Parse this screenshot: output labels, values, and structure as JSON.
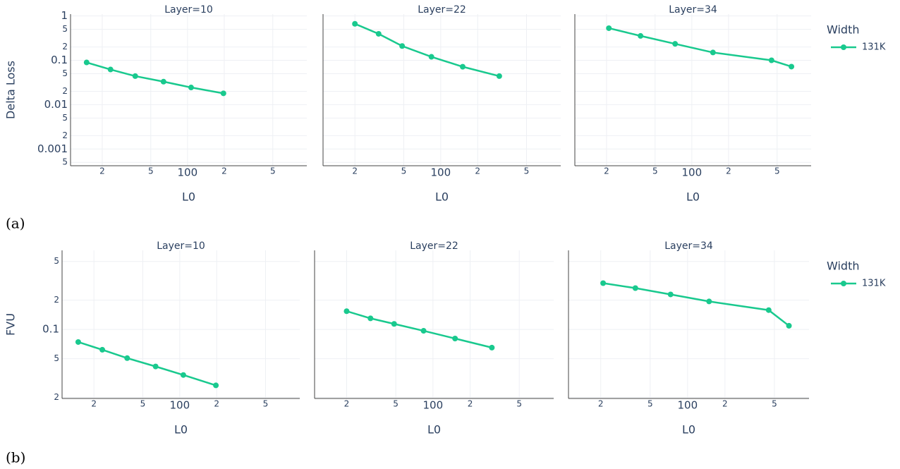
{
  "panel_labels": [
    "(a)",
    "(b)"
  ],
  "chart_data": [
    {
      "type": "line",
      "title": "Layer=10",
      "x_label": "L0",
      "y_label": "Delta Loss",
      "log_x": true,
      "log_y": true,
      "grid": true,
      "xlim": [
        11,
        950
      ],
      "ylim": [
        0.00042,
        1.1
      ],
      "xticks": [
        {
          "value": 20,
          "label": "2"
        },
        {
          "value": 50,
          "label": "5"
        },
        100,
        {
          "value": 200,
          "label": "2"
        },
        {
          "value": 500,
          "label": "5"
        }
      ],
      "yticks": [
        1,
        {
          "value": 0.5,
          "label": "5"
        },
        {
          "value": 0.2,
          "label": "2"
        },
        0.1,
        {
          "value": 0.05,
          "label": "5"
        },
        {
          "value": 0.02,
          "label": "2"
        },
        0.01,
        {
          "value": 0.005,
          "label": "5"
        },
        {
          "value": 0.002,
          "label": "2"
        },
        0.001,
        {
          "value": 0.0005,
          "label": "5"
        }
      ],
      "x": [
        14.9,
        23.4,
        37.3,
        63.6,
        107,
        197
      ],
      "series": [
        {
          "color": "#19c98e",
          "values": [
            0.0895,
            0.062,
            0.044,
            0.033,
            0.0244,
            0.018
          ]
        }
      ]
    },
    {
      "type": "line",
      "title": "Layer=22",
      "x_label": "L0",
      "log_x": true,
      "log_y": true,
      "grid": true,
      "xlim": [
        11,
        950
      ],
      "ylim": [
        0.00042,
        1.1
      ],
      "xticks": [
        {
          "value": 20,
          "label": "2"
        },
        {
          "value": 50,
          "label": "5"
        },
        100,
        {
          "value": 200,
          "label": "2"
        },
        {
          "value": 500,
          "label": "5"
        }
      ],
      "x": [
        20,
        31.2,
        48.5,
        84,
        151,
        300
      ],
      "series": [
        {
          "color": "#19c98e",
          "values": [
            0.665,
            0.395,
            0.21,
            0.12,
            0.0716,
            0.044
          ]
        }
      ]
    },
    {
      "type": "line",
      "title": "Layer=34",
      "x_label": "L0",
      "log_x": true,
      "log_y": true,
      "grid": true,
      "xlim": [
        11,
        950
      ],
      "ylim": [
        0.00042,
        1.1
      ],
      "xticks": [
        {
          "value": 20,
          "label": "2"
        },
        {
          "value": 50,
          "label": "5"
        },
        100,
        {
          "value": 200,
          "label": "2"
        },
        {
          "value": 500,
          "label": "5"
        }
      ],
      "x": [
        20.9,
        38,
        73,
        149,
        450,
        655
      ],
      "legend": "right",
      "legend_title": "Width",
      "series": [
        {
          "name": "131K",
          "color": "#19c98e",
          "values": [
            0.53,
            0.355,
            0.235,
            0.15,
            0.1,
            0.072
          ]
        }
      ]
    },
    {
      "type": "line",
      "title": "Layer=10",
      "x_label": "L0",
      "y_label": "FVU",
      "log_x": true,
      "log_y": true,
      "grid": true,
      "xlim": [
        11,
        950
      ],
      "ylim": [
        0.0195,
        0.65
      ],
      "xticks": [
        {
          "value": 20,
          "label": "2"
        },
        {
          "value": 50,
          "label": "5"
        },
        100,
        {
          "value": 200,
          "label": "2"
        },
        {
          "value": 500,
          "label": "5"
        }
      ],
      "yticks": [
        {
          "value": 0.5,
          "label": "5"
        },
        {
          "value": 0.2,
          "label": "2"
        },
        0.1,
        {
          "value": 0.05,
          "label": "5"
        },
        {
          "value": 0.02,
          "label": "2"
        }
      ],
      "x": [
        14.9,
        23.4,
        37.3,
        63.6,
        107,
        197
      ],
      "series": [
        {
          "color": "#19c98e",
          "values": [
            0.0742,
            0.0618,
            0.0507,
            0.0416,
            0.034,
            0.0266
          ]
        }
      ]
    },
    {
      "type": "line",
      "title": "Layer=22",
      "x_label": "L0",
      "log_x": true,
      "log_y": true,
      "grid": true,
      "xlim": [
        11,
        950
      ],
      "ylim": [
        0.0195,
        0.65
      ],
      "xticks": [
        {
          "value": 20,
          "label": "2"
        },
        {
          "value": 50,
          "label": "5"
        },
        100,
        {
          "value": 200,
          "label": "2"
        },
        {
          "value": 500,
          "label": "5"
        }
      ],
      "x": [
        20,
        31.2,
        48.5,
        84,
        151,
        300
      ],
      "series": [
        {
          "color": "#19c98e",
          "values": [
            0.154,
            0.13,
            0.114,
            0.0968,
            0.0806,
            0.065
          ]
        }
      ]
    },
    {
      "type": "line",
      "title": "Layer=34",
      "x_label": "L0",
      "log_x": true,
      "log_y": true,
      "grid": true,
      "xlim": [
        11,
        950
      ],
      "ylim": [
        0.0195,
        0.65
      ],
      "xticks": [
        {
          "value": 20,
          "label": "2"
        },
        {
          "value": 50,
          "label": "5"
        },
        100,
        {
          "value": 200,
          "label": "2"
        },
        {
          "value": 500,
          "label": "5"
        }
      ],
      "x": [
        20.9,
        38,
        73,
        149,
        450,
        655
      ],
      "legend": "right",
      "legend_title": "Width",
      "series": [
        {
          "name": "131K",
          "color": "#19c98e",
          "values": [
            0.299,
            0.266,
            0.229,
            0.194,
            0.158,
            0.109
          ]
        }
      ]
    }
  ]
}
